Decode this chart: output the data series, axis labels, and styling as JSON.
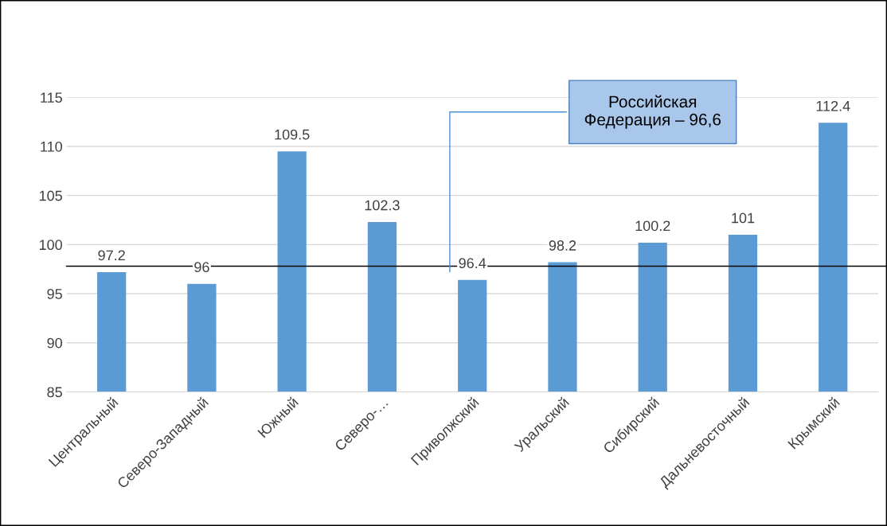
{
  "chart_data": {
    "type": "bar",
    "categories": [
      "Центральный",
      "Северо-Западный",
      "Южный",
      "Северо-…",
      "Приволжский",
      "Уральский",
      "Сибирский",
      "Дальневосточный",
      "Крымский"
    ],
    "values": [
      97.2,
      96,
      109.5,
      102.3,
      96.4,
      98.2,
      100.2,
      101,
      112.4
    ],
    "color": "#5b9bd5",
    "data_labels": true,
    "ylim": [
      85,
      115
    ],
    "yticks": [
      85,
      90,
      95,
      100,
      105,
      110,
      115
    ],
    "grid": "y",
    "ref_lines": [
      {
        "axis": "y",
        "value": 97.8,
        "label": "Российская\nФедерация – 96,6",
        "color": "#000000"
      }
    ]
  }
}
